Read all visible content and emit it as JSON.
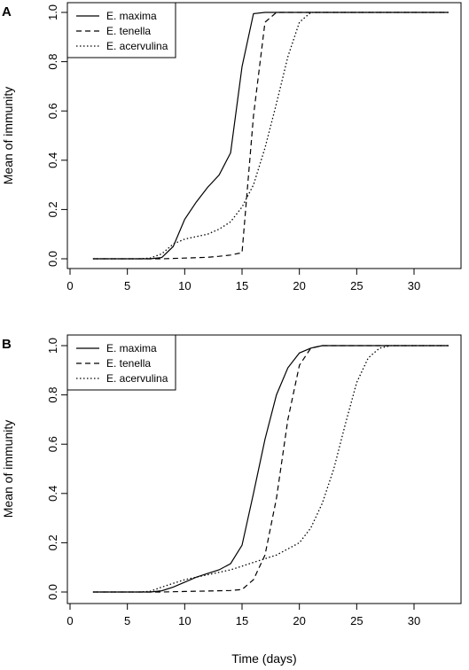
{
  "xlabel": "Time (days)",
  "chart_data": [
    {
      "type": "line",
      "panel": "A",
      "ylabel": "Mean of immunity",
      "xlim": [
        0,
        34
      ],
      "ylim": [
        0,
        1
      ],
      "xticks": [
        0,
        5,
        10,
        15,
        20,
        25,
        30
      ],
      "yticks": [
        "0.0",
        "0.2",
        "0.4",
        "0.6",
        "0.8",
        "1.0"
      ],
      "legend_position": "top-left",
      "series": [
        {
          "name": "E. maxima",
          "style": "solid",
          "x": [
            2,
            7,
            8,
            9,
            10,
            11,
            12,
            13,
            14,
            15,
            16,
            17,
            18,
            20,
            25,
            33
          ],
          "y": [
            0,
            0,
            0.005,
            0.05,
            0.16,
            0.23,
            0.29,
            0.34,
            0.43,
            0.78,
            0.995,
            1,
            1,
            1,
            1,
            1
          ]
        },
        {
          "name": "E. tenella",
          "style": "dashed",
          "x": [
            2,
            8,
            10,
            12,
            13,
            14,
            15,
            16,
            17,
            18,
            20,
            25,
            33
          ],
          "y": [
            0,
            0,
            0.003,
            0.006,
            0.01,
            0.015,
            0.025,
            0.58,
            0.96,
            1,
            1,
            1,
            1
          ]
        },
        {
          "name": "E. acervulina",
          "style": "dotted",
          "x": [
            2,
            6,
            7,
            8,
            9,
            10,
            11,
            12,
            13,
            14,
            15,
            16,
            17,
            18,
            19,
            20,
            21,
            25,
            33
          ],
          "y": [
            0,
            0,
            0.003,
            0.02,
            0.06,
            0.08,
            0.09,
            0.1,
            0.12,
            0.15,
            0.21,
            0.3,
            0.45,
            0.63,
            0.82,
            0.96,
            1,
            1,
            1
          ]
        }
      ]
    },
    {
      "type": "line",
      "panel": "B",
      "ylabel": "Mean of immunity",
      "xlabel": "Time (days)",
      "xlim": [
        0,
        34
      ],
      "ylim": [
        0,
        1
      ],
      "xticks": [
        0,
        5,
        10,
        15,
        20,
        25,
        30
      ],
      "yticks": [
        "0.0",
        "0.2",
        "0.4",
        "0.6",
        "0.8",
        "1.0"
      ],
      "legend_position": "top-left",
      "series": [
        {
          "name": "E. maxima",
          "style": "solid",
          "x": [
            2,
            7,
            8,
            9,
            10,
            11,
            12,
            13,
            14,
            15,
            16,
            17,
            18,
            19,
            20,
            21,
            22,
            25,
            33
          ],
          "y": [
            0,
            0,
            0.005,
            0.02,
            0.04,
            0.06,
            0.075,
            0.09,
            0.115,
            0.19,
            0.4,
            0.62,
            0.8,
            0.91,
            0.97,
            0.99,
            1,
            1,
            1
          ]
        },
        {
          "name": "E. tenella",
          "style": "dashed",
          "x": [
            2,
            8,
            10,
            12,
            14,
            15,
            16,
            17,
            18,
            19,
            20,
            21,
            22,
            25,
            33
          ],
          "y": [
            0,
            0,
            0.002,
            0.004,
            0.006,
            0.01,
            0.05,
            0.15,
            0.38,
            0.7,
            0.92,
            0.99,
            1,
            1,
            1
          ]
        },
        {
          "name": "E. acervulina",
          "style": "dotted",
          "x": [
            2,
            6,
            7,
            8,
            10,
            12,
            14,
            16,
            18,
            20,
            21,
            22,
            23,
            24,
            25,
            26,
            27,
            28,
            33
          ],
          "y": [
            0,
            0,
            0.003,
            0.02,
            0.05,
            0.07,
            0.09,
            0.12,
            0.15,
            0.2,
            0.26,
            0.36,
            0.5,
            0.68,
            0.85,
            0.95,
            0.99,
            1,
            1
          ]
        }
      ]
    }
  ]
}
